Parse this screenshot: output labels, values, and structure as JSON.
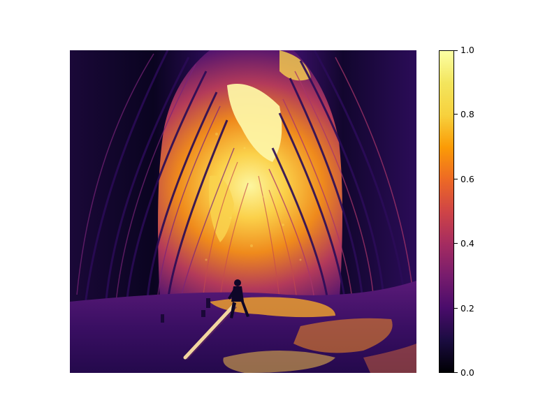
{
  "colorbar": {
    "colormap": "inferno",
    "range": [
      0.0,
      1.0
    ],
    "ticks": [
      "0.0",
      "0.2",
      "0.4",
      "0.6",
      "0.8",
      "1.0"
    ],
    "tick_values": [
      0.0,
      0.2,
      0.4,
      0.6,
      0.8,
      1.0
    ]
  },
  "image": {
    "subject": "bamboo-tunnel-with-person",
    "palette": {
      "dark": "#0d0628",
      "mid": "#5a1a78",
      "warm": "#e86a1a",
      "bright": "#fbe46a"
    }
  }
}
